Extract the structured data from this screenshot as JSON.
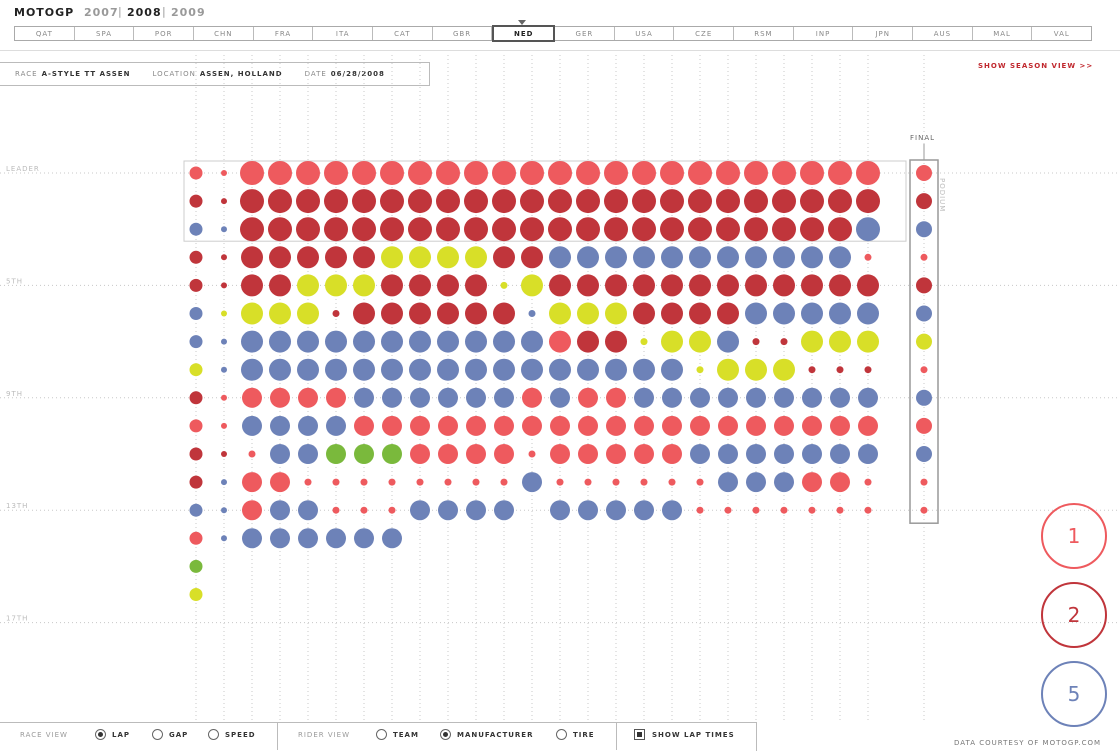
{
  "header": {
    "app_title": "MOTOGP",
    "years": [
      "2007",
      "2008",
      "2009"
    ],
    "selected_year": "2008"
  },
  "races": [
    "QAT",
    "SPA",
    "POR",
    "CHN",
    "FRA",
    "ITA",
    "CAT",
    "GBR",
    "NED",
    "GER",
    "USA",
    "CZE",
    "RSM",
    "INP",
    "JPN",
    "AUS",
    "MAL",
    "VAL"
  ],
  "selected_race": "NED",
  "race_info": {
    "race_label": "RACE",
    "race_value": "A-STYLE TT ASSEN",
    "location_label": "LOCATION",
    "location_value": "ASSEN, HOLLAND",
    "date_label": "DATE",
    "date_value": "06/28/2008"
  },
  "season_link": "SHOW SEASON VIEW >>",
  "final_label": "FINAL",
  "podium_label": "PODIUM",
  "chart_data": {
    "type": "scatter",
    "description_axes": {
      "x": "lap",
      "y": "position"
    },
    "row_labels": [
      {
        "position": 1,
        "label": "LEADER"
      },
      {
        "position": 5,
        "label": "5TH"
      },
      {
        "position": 9,
        "label": "9TH"
      },
      {
        "position": 13,
        "label": "13TH"
      },
      {
        "position": 17,
        "label": "17TH"
      }
    ],
    "colors": {
      "R": "#ee5a5e",
      "D": "#c0353b",
      "B": "#6d82b8",
      "Y": "#d8df28",
      "G": "#7ab93c"
    },
    "columns": [
      "RDBDDBBYDRDDBRGY",
      "rdbddybbrrdbbb",
      "RDDDDYBBRBrRRB",
      "RDDDDYBBRBBRBB",
      "RDDDYYBBRBBrBB",
      "RDDDYdBBRBGrrB",
      "RDDDYDBBBRGrrB",
      "RDDYDDBBBRGrrB",
      "RDDYDDBBBRRrB",
      "RDDYDDBBBRRrB",
      "RDDYDDBBBRRrB",
      "RDDDyDBBBRRrB",
      "RDDDYbBBRRrB",
      "RDDBDYRBBRRrB",
      "RDDBDYDBRRRrB",
      "RDDBDYDBRRRrB",
      "RDDBDDyBBRRrB",
      "RDDBDDYBBRRrB",
      "RDDBDDYyBRBrr",
      "RDDBDDBYBRBBr",
      "RDDBDBdYBRBBr",
      "RDDBDBdYBRBBr",
      "RDDBDBYdBRBRr",
      "RDDBDBYdBRBRr",
      "RDBrDBYdBRBrr"
    ],
    "final_order": "RDBrDBYrBRBrr"
  },
  "legend_circles": [
    {
      "label": "1",
      "color": "#ee5a5e"
    },
    {
      "label": "2",
      "color": "#c0353b"
    },
    {
      "label": "5",
      "color": "#6d82b8"
    }
  ],
  "controls": {
    "race_view_label": "RACE VIEW",
    "race_view_options": [
      "LAP",
      "GAP",
      "SPEED"
    ],
    "race_view_selected": "LAP",
    "rider_view_label": "RIDER VIEW",
    "rider_view_options": [
      "TEAM",
      "MANUFACTURER",
      "TIRE"
    ],
    "rider_view_selected": "MANUFACTURER",
    "lap_times_label": "SHOW LAP TIMES",
    "lap_times_checked": true
  },
  "credit": "DATA COURTESY OF MOTOGP.COM"
}
